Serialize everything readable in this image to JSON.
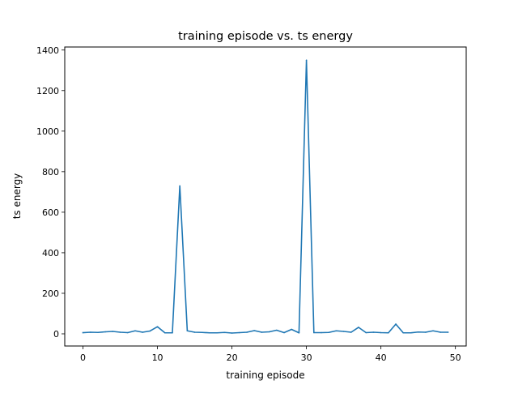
{
  "chart_data": {
    "type": "line",
    "title": "training episode vs. ts energy",
    "xlabel": "training episode",
    "ylabel": "ts energy",
    "xlim": [
      -2.45,
      51.45
    ],
    "ylim": [
      -60,
      1415
    ],
    "xticks": [
      0,
      10,
      20,
      30,
      40,
      50
    ],
    "yticks": [
      0,
      200,
      400,
      600,
      800,
      1000,
      1200,
      1400
    ],
    "grid": false,
    "legend": "none",
    "series": [
      {
        "color": "#1f77b4",
        "x": [
          0,
          1,
          2,
          3,
          4,
          5,
          6,
          7,
          8,
          9,
          10,
          11,
          12,
          13,
          14,
          15,
          16,
          17,
          18,
          19,
          20,
          21,
          22,
          23,
          24,
          25,
          26,
          27,
          28,
          29,
          30,
          31,
          32,
          33,
          34,
          35,
          36,
          37,
          38,
          39,
          40,
          41,
          42,
          43,
          44,
          45,
          46,
          47,
          48,
          49
        ],
        "values": [
          6,
          8,
          7,
          10,
          12,
          8,
          6,
          15,
          8,
          14,
          35,
          5,
          5,
          730,
          15,
          8,
          7,
          5,
          5,
          7,
          4,
          6,
          8,
          16,
          8,
          10,
          18,
          6,
          22,
          5,
          1350,
          6,
          6,
          7,
          15,
          12,
          8,
          32,
          6,
          8,
          6,
          5,
          48,
          5,
          5,
          9,
          8,
          15,
          8,
          8
        ]
      }
    ]
  }
}
